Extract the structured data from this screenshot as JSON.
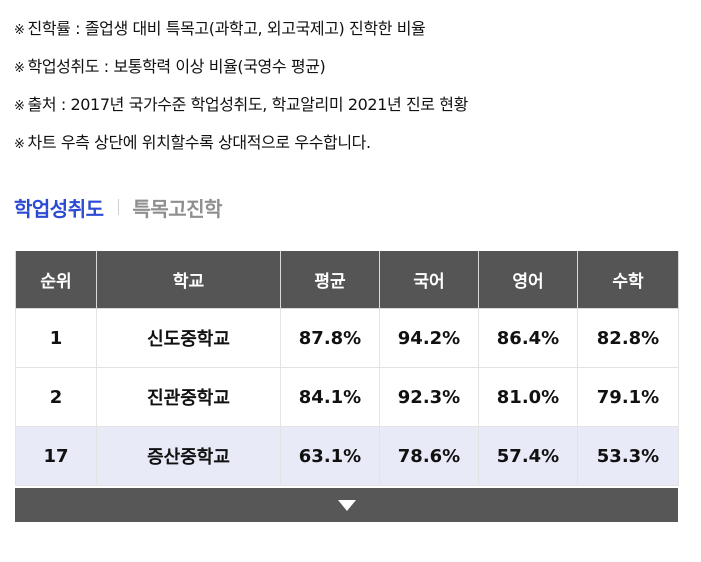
{
  "notes": {
    "marker": "※",
    "items": [
      "진학률 : 졸업생 대비 특목고(과학고, 외고국제고) 진학한 비율",
      "학업성취도 : 보통학력 이상 비율(국영수 평균)",
      "출처 : 2017년 국가수준 학업성취도, 학교알리미 2021년 진로 현황",
      "차트 우측 상단에 위치할수록 상대적으로 우수합니다."
    ]
  },
  "tabs": {
    "active": "학업성취도",
    "inactive": "특목고진학"
  },
  "table": {
    "headers": [
      "순위",
      "학교",
      "평균",
      "국어",
      "영어",
      "수학"
    ],
    "rows": [
      {
        "rank": "1",
        "school": "신도중학교",
        "avg": "87.8%",
        "korean": "94.2%",
        "english": "86.4%",
        "math": "82.8%"
      },
      {
        "rank": "2",
        "school": "진관중학교",
        "avg": "84.1%",
        "korean": "92.3%",
        "english": "81.0%",
        "math": "79.1%"
      },
      {
        "rank": "17",
        "school": "증산중학교",
        "avg": "63.1%",
        "korean": "78.6%",
        "english": "57.4%",
        "math": "53.3%"
      }
    ],
    "highlight_color": "#e8eaf8",
    "header_color": "#555555"
  },
  "expand": {
    "icon": "triangle-down-icon"
  },
  "colors": {
    "accent": "#2c4bd4",
    "inactive_tab": "#8f8f8f"
  }
}
